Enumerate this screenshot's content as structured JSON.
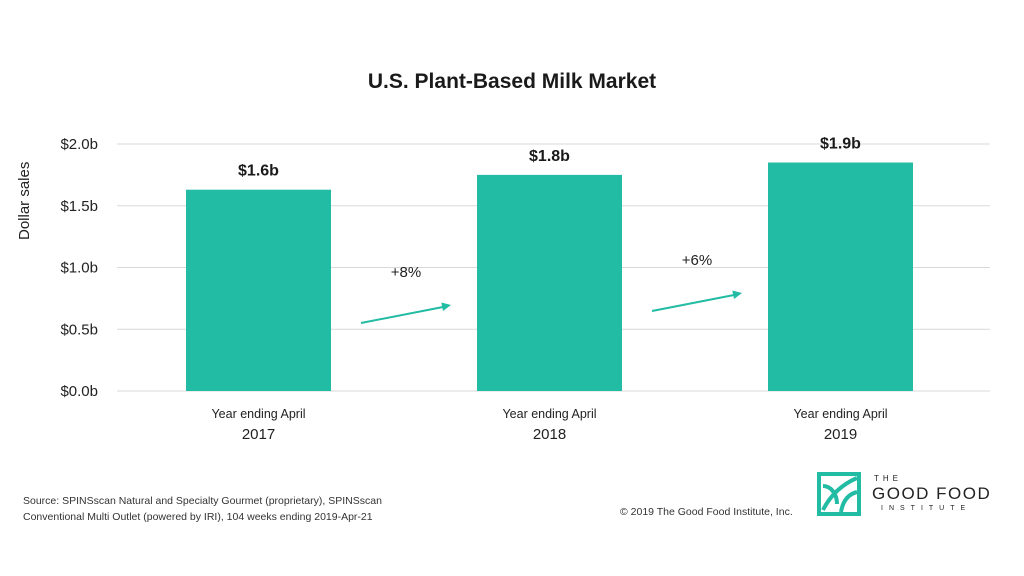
{
  "chart_data": {
    "type": "bar",
    "title": "U.S. Plant-Based Milk Market",
    "ylabel": "Dollar sales",
    "xlabel": "",
    "ylim": [
      0,
      2.0
    ],
    "yticks": [
      {
        "value": 0.0,
        "label": "$0.0b"
      },
      {
        "value": 0.5,
        "label": "$0.5b"
      },
      {
        "value": 1.0,
        "label": "$1.0b"
      },
      {
        "value": 1.5,
        "label": "$1.5b"
      },
      {
        "value": 2.0,
        "label": "$2.0b"
      }
    ],
    "categories": [
      {
        "line1": "Year ending April",
        "line2": "2017"
      },
      {
        "line1": "Year ending April",
        "line2": "2018"
      },
      {
        "line1": "Year ending April",
        "line2": "2019"
      }
    ],
    "values": [
      1.63,
      1.75,
      1.85
    ],
    "data_labels": [
      "$1.6b",
      "$1.8b",
      "$1.9b"
    ],
    "growth_annotations": [
      "+8%",
      "+6%"
    ],
    "grid": true,
    "bar_color": "#22bba3",
    "arrow_color": "#22bba3"
  },
  "footer": {
    "source_line1": "Source: SPINSscan Natural and Specialty Gourmet (proprietary), SPINSscan",
    "source_line2": "Conventional Multi Outlet (powered by IRI), 104 weeks ending 2019-Apr-21",
    "copyright": "© 2019 The Good Food Institute, Inc."
  },
  "logo": {
    "icon": "leaf-square-icon",
    "line1": "THE",
    "line2": "GOOD FOOD",
    "line3": "INSTITUTE",
    "color": "#22bba3"
  }
}
